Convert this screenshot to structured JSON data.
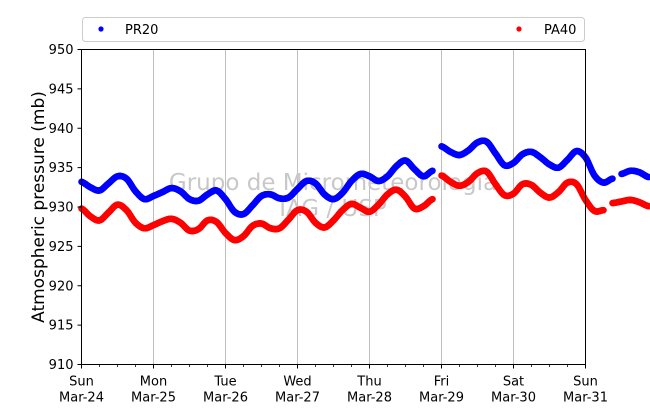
{
  "chart_data": {
    "type": "scatter",
    "title": "",
    "xlabel": "",
    "ylabel": "Atmospheric pressure (mb)",
    "ylim": [
      910,
      950
    ],
    "yticks": [
      910,
      915,
      920,
      925,
      930,
      935,
      940,
      945,
      950
    ],
    "x_domain": [
      "2024-03-24",
      "2024-03-31"
    ],
    "x_ticks": [
      {
        "date": "2024-03-24",
        "day": "Sun",
        "label": "Mar-24"
      },
      {
        "date": "2024-03-25",
        "day": "Mon",
        "label": "Mar-25"
      },
      {
        "date": "2024-03-26",
        "day": "Tue",
        "label": "Mar-26"
      },
      {
        "date": "2024-03-27",
        "day": "Wed",
        "label": "Mar-27"
      },
      {
        "date": "2024-03-28",
        "day": "Thu",
        "label": "Mar-28"
      },
      {
        "date": "2024-03-29",
        "day": "Fri",
        "label": "Mar-29"
      },
      {
        "date": "2024-03-30",
        "day": "Sat",
        "label": "Mar-30"
      },
      {
        "date": "2024-03-31",
        "day": "Sun",
        "label": "Mar-31"
      }
    ],
    "grid": "vertical",
    "legend": "top",
    "watermark": [
      "Grupo de Micrometeorologia",
      "IAG / USP"
    ],
    "series": [
      {
        "name": "PR20",
        "color": "#0000ff",
        "segments": [
          [
            {
              "x": "2024-03-24 00:00",
              "y": 933.2
            },
            {
              "x": "2024-03-24 03:00",
              "y": 932.5
            },
            {
              "x": "2024-03-24 06:00",
              "y": 932.1
            },
            {
              "x": "2024-03-24 09:00",
              "y": 933.0
            },
            {
              "x": "2024-03-24 12:00",
              "y": 933.9
            },
            {
              "x": "2024-03-24 15:00",
              "y": 933.6
            },
            {
              "x": "2024-03-24 18:00",
              "y": 932.0
            },
            {
              "x": "2024-03-24 21:00",
              "y": 931.0
            },
            {
              "x": "2024-03-25 00:00",
              "y": 931.4
            },
            {
              "x": "2024-03-25 03:00",
              "y": 931.9
            },
            {
              "x": "2024-03-25 06:00",
              "y": 932.4
            },
            {
              "x": "2024-03-25 09:00",
              "y": 932.0
            },
            {
              "x": "2024-03-25 12:00",
              "y": 931.0
            },
            {
              "x": "2024-03-25 15:00",
              "y": 930.8
            },
            {
              "x": "2024-03-25 18:00",
              "y": 931.6
            },
            {
              "x": "2024-03-25 21:00",
              "y": 932.1
            },
            {
              "x": "2024-03-26 00:00",
              "y": 931.0
            },
            {
              "x": "2024-03-26 03:00",
              "y": 929.4
            },
            {
              "x": "2024-03-26 06:00",
              "y": 929.1
            },
            {
              "x": "2024-03-26 09:00",
              "y": 930.2
            },
            {
              "x": "2024-03-26 12:00",
              "y": 931.4
            },
            {
              "x": "2024-03-26 15:00",
              "y": 931.6
            },
            {
              "x": "2024-03-26 18:00",
              "y": 931.1
            },
            {
              "x": "2024-03-26 21:00",
              "y": 931.2
            },
            {
              "x": "2024-03-27 00:00",
              "y": 932.3
            },
            {
              "x": "2024-03-27 03:00",
              "y": 933.3
            },
            {
              "x": "2024-03-27 06:00",
              "y": 933.0
            },
            {
              "x": "2024-03-27 09:00",
              "y": 931.6
            },
            {
              "x": "2024-03-27 12:00",
              "y": 931.0
            },
            {
              "x": "2024-03-27 15:00",
              "y": 931.8
            },
            {
              "x": "2024-03-27 18:00",
              "y": 933.3
            },
            {
              "x": "2024-03-27 21:00",
              "y": 934.2
            },
            {
              "x": "2024-03-28 00:00",
              "y": 933.9
            },
            {
              "x": "2024-03-28 03:00",
              "y": 933.3
            },
            {
              "x": "2024-03-28 06:00",
              "y": 933.9
            },
            {
              "x": "2024-03-28 09:00",
              "y": 935.2
            },
            {
              "x": "2024-03-28 12:00",
              "y": 935.9
            },
            {
              "x": "2024-03-28 15:00",
              "y": 934.8
            },
            {
              "x": "2024-03-28 18:00",
              "y": 933.9
            },
            {
              "x": "2024-03-28 21:00",
              "y": 934.6
            }
          ],
          [
            {
              "x": "2024-03-29 00:00",
              "y": 937.7
            },
            {
              "x": "2024-03-29 03:00",
              "y": 937.0
            },
            {
              "x": "2024-03-29 06:00",
              "y": 936.6
            },
            {
              "x": "2024-03-29 09:00",
              "y": 937.2
            },
            {
              "x": "2024-03-29 12:00",
              "y": 938.2
            },
            {
              "x": "2024-03-29 15:00",
              "y": 938.3
            },
            {
              "x": "2024-03-29 18:00",
              "y": 936.8
            },
            {
              "x": "2024-03-29 21:00",
              "y": 935.3
            },
            {
              "x": "2024-03-30 00:00",
              "y": 935.6
            },
            {
              "x": "2024-03-30 03:00",
              "y": 936.7
            },
            {
              "x": "2024-03-30 06:00",
              "y": 937.0
            },
            {
              "x": "2024-03-30 09:00",
              "y": 936.3
            },
            {
              "x": "2024-03-30 12:00",
              "y": 935.4
            },
            {
              "x": "2024-03-30 15:00",
              "y": 935.0
            },
            {
              "x": "2024-03-30 18:00",
              "y": 936.0
            },
            {
              "x": "2024-03-30 21:00",
              "y": 937.1
            },
            {
              "x": "2024-03-31 00:00",
              "y": 936.3
            },
            {
              "x": "2024-03-31 03:00",
              "y": 934.0
            },
            {
              "x": "2024-03-31 06:00",
              "y": 933.1
            },
            {
              "x": "2024-03-31 09:00",
              "y": 933.6
            }
          ],
          [
            {
              "x": "2024-03-31 12:00",
              "y": 934.2
            },
            {
              "x": "2024-03-31 15:00",
              "y": 934.6
            },
            {
              "x": "2024-03-31 18:00",
              "y": 934.4
            },
            {
              "x": "2024-03-31 21:00",
              "y": 933.8
            }
          ]
        ]
      },
      {
        "name": "PA40",
        "color": "#ff0000",
        "segments": [
          [
            {
              "x": "2024-03-24 00:00",
              "y": 929.8
            },
            {
              "x": "2024-03-24 03:00",
              "y": 928.8
            },
            {
              "x": "2024-03-24 06:00",
              "y": 928.3
            },
            {
              "x": "2024-03-24 09:00",
              "y": 929.3
            },
            {
              "x": "2024-03-24 12:00",
              "y": 930.3
            },
            {
              "x": "2024-03-24 15:00",
              "y": 929.6
            },
            {
              "x": "2024-03-24 18:00",
              "y": 928.0
            },
            {
              "x": "2024-03-24 21:00",
              "y": 927.3
            },
            {
              "x": "2024-03-25 00:00",
              "y": 927.7
            },
            {
              "x": "2024-03-25 03:00",
              "y": 928.2
            },
            {
              "x": "2024-03-25 06:00",
              "y": 928.5
            },
            {
              "x": "2024-03-25 09:00",
              "y": 928.0
            },
            {
              "x": "2024-03-25 12:00",
              "y": 927.0
            },
            {
              "x": "2024-03-25 15:00",
              "y": 927.2
            },
            {
              "x": "2024-03-25 18:00",
              "y": 928.3
            },
            {
              "x": "2024-03-25 21:00",
              "y": 928.1
            },
            {
              "x": "2024-03-26 00:00",
              "y": 926.7
            },
            {
              "x": "2024-03-26 03:00",
              "y": 925.8
            },
            {
              "x": "2024-03-26 06:00",
              "y": 926.3
            },
            {
              "x": "2024-03-26 09:00",
              "y": 927.6
            },
            {
              "x": "2024-03-26 12:00",
              "y": 927.9
            },
            {
              "x": "2024-03-26 15:00",
              "y": 927.3
            },
            {
              "x": "2024-03-26 18:00",
              "y": 927.3
            },
            {
              "x": "2024-03-26 21:00",
              "y": 928.4
            },
            {
              "x": "2024-03-27 00:00",
              "y": 929.6
            },
            {
              "x": "2024-03-27 03:00",
              "y": 929.4
            },
            {
              "x": "2024-03-27 06:00",
              "y": 928.0
            },
            {
              "x": "2024-03-27 09:00",
              "y": 927.4
            },
            {
              "x": "2024-03-27 12:00",
              "y": 928.3
            },
            {
              "x": "2024-03-27 15:00",
              "y": 929.6
            },
            {
              "x": "2024-03-27 18:00",
              "y": 930.4
            },
            {
              "x": "2024-03-27 21:00",
              "y": 929.9
            },
            {
              "x": "2024-03-28 00:00",
              "y": 929.4
            },
            {
              "x": "2024-03-28 03:00",
              "y": 930.3
            },
            {
              "x": "2024-03-28 06:00",
              "y": 931.6
            },
            {
              "x": "2024-03-28 09:00",
              "y": 932.2
            },
            {
              "x": "2024-03-28 12:00",
              "y": 931.3
            },
            {
              "x": "2024-03-28 15:00",
              "y": 929.8
            },
            {
              "x": "2024-03-28 18:00",
              "y": 930.1
            },
            {
              "x": "2024-03-28 21:00",
              "y": 931.0
            }
          ],
          [
            {
              "x": "2024-03-29 00:00",
              "y": 934.0
            },
            {
              "x": "2024-03-29 03:00",
              "y": 933.2
            },
            {
              "x": "2024-03-29 06:00",
              "y": 932.7
            },
            {
              "x": "2024-03-29 09:00",
              "y": 933.2
            },
            {
              "x": "2024-03-29 12:00",
              "y": 934.3
            },
            {
              "x": "2024-03-29 15:00",
              "y": 934.5
            },
            {
              "x": "2024-03-29 18:00",
              "y": 932.9
            },
            {
              "x": "2024-03-29 21:00",
              "y": 931.5
            },
            {
              "x": "2024-03-30 00:00",
              "y": 931.7
            },
            {
              "x": "2024-03-30 03:00",
              "y": 932.9
            },
            {
              "x": "2024-03-30 06:00",
              "y": 932.8
            },
            {
              "x": "2024-03-30 09:00",
              "y": 931.8
            },
            {
              "x": "2024-03-30 12:00",
              "y": 931.2
            },
            {
              "x": "2024-03-30 15:00",
              "y": 931.9
            },
            {
              "x": "2024-03-30 18:00",
              "y": 933.1
            },
            {
              "x": "2024-03-30 21:00",
              "y": 932.9
            },
            {
              "x": "2024-03-31 00:00",
              "y": 930.9
            },
            {
              "x": "2024-03-31 03:00",
              "y": 929.5
            },
            {
              "x": "2024-03-31 06:00",
              "y": 929.6
            }
          ],
          [
            {
              "x": "2024-03-31 09:00",
              "y": 930.5
            },
            {
              "x": "2024-03-31 12:00",
              "y": 930.7
            },
            {
              "x": "2024-03-31 15:00",
              "y": 930.9
            },
            {
              "x": "2024-03-31 18:00",
              "y": 930.6
            },
            {
              "x": "2024-03-31 21:00",
              "y": 930.1
            }
          ]
        ]
      }
    ]
  }
}
